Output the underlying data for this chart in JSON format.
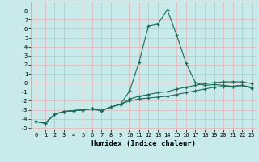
{
  "title": "",
  "xlabel": "Humidex (Indice chaleur)",
  "background_color": "#c8eaea",
  "grid_color": "#e8b0b0",
  "line_color": "#1a6b5a",
  "xlim": [
    -0.5,
    23.5
  ],
  "ylim": [
    -5.2,
    9.0
  ],
  "x_ticks": [
    0,
    1,
    2,
    3,
    4,
    5,
    6,
    7,
    8,
    9,
    10,
    11,
    12,
    13,
    14,
    15,
    16,
    17,
    18,
    19,
    20,
    21,
    22,
    23
  ],
  "y_ticks": [
    -5,
    -4,
    -3,
    -2,
    -1,
    0,
    1,
    2,
    3,
    4,
    5,
    6,
    7,
    8
  ],
  "series1_x": [
    0,
    1,
    2,
    3,
    4,
    5,
    6,
    7,
    8,
    9,
    10,
    11,
    12,
    13,
    14,
    15,
    16,
    17,
    18,
    19,
    20,
    21,
    22,
    23
  ],
  "series1_y": [
    -4.3,
    -4.5,
    -3.5,
    -3.2,
    -3.1,
    -3.0,
    -2.9,
    -3.1,
    -2.7,
    -2.4,
    -0.9,
    2.3,
    6.3,
    6.5,
    8.1,
    5.3,
    2.2,
    0.0,
    -0.3,
    -0.2,
    -0.3,
    -0.4,
    -0.3,
    -0.6
  ],
  "series2_x": [
    0,
    1,
    2,
    3,
    4,
    5,
    6,
    7,
    8,
    9,
    10,
    11,
    12,
    13,
    14,
    15,
    16,
    17,
    18,
    19,
    20,
    21,
    22,
    23
  ],
  "series2_y": [
    -4.3,
    -4.5,
    -3.5,
    -3.2,
    -3.1,
    -3.0,
    -2.9,
    -3.1,
    -2.7,
    -2.4,
    -1.8,
    -1.5,
    -1.3,
    -1.1,
    -1.0,
    -0.7,
    -0.5,
    -0.3,
    -0.1,
    0.0,
    0.1,
    0.1,
    0.1,
    -0.1
  ],
  "series3_x": [
    0,
    1,
    2,
    3,
    4,
    5,
    6,
    7,
    8,
    9,
    10,
    11,
    12,
    13,
    14,
    15,
    16,
    17,
    18,
    19,
    20,
    21,
    22,
    23
  ],
  "series3_y": [
    -4.3,
    -4.5,
    -3.5,
    -3.2,
    -3.1,
    -3.0,
    -2.9,
    -3.1,
    -2.7,
    -2.4,
    -2.0,
    -1.8,
    -1.7,
    -1.6,
    -1.5,
    -1.3,
    -1.1,
    -0.9,
    -0.7,
    -0.5,
    -0.4,
    -0.4,
    -0.3,
    -0.5
  ],
  "xlabel_fontsize": 6.5,
  "xlabel_fontweight": "bold",
  "tick_fontsize": 5.0,
  "lw": 0.8,
  "ms": 3.0
}
